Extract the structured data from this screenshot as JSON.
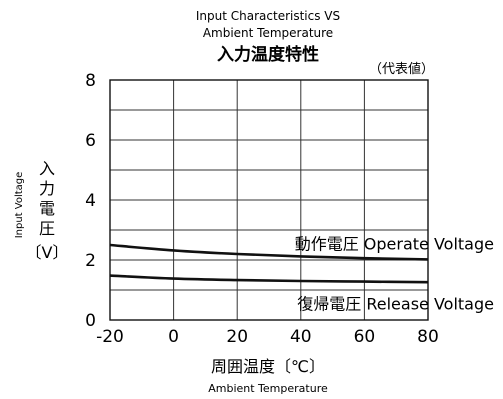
{
  "chart_data": {
    "type": "line",
    "title_en": [
      "Input Characteristics VS",
      "Ambient Temperature"
    ],
    "title_jp": "入力温度特性",
    "note": "（代表値）",
    "xlabel_jp": "周囲温度〔℃〕",
    "xlabel_en": "Ambient Temperature",
    "ylabel_en": "Input Voltage",
    "ylabel_jp_chars": [
      "入",
      "力",
      "電",
      "圧"
    ],
    "ylabel_unit": "〔V〕",
    "xlim": [
      -20,
      80
    ],
    "ylim": [
      0,
      8
    ],
    "x_ticks": [
      "-20",
      "0",
      "20",
      "40",
      "60",
      "80"
    ],
    "y_ticks": [
      "0",
      "2",
      "4",
      "6",
      "8"
    ],
    "grid": true,
    "series": [
      {
        "name": "動作電圧 Operate Voltage",
        "x": [
          -20,
          0,
          20,
          40,
          60,
          80
        ],
        "y": [
          2.5,
          2.32,
          2.2,
          2.12,
          2.06,
          2.02
        ]
      },
      {
        "name": "復帰電圧 Release Voltage",
        "x": [
          -20,
          0,
          20,
          40,
          60,
          80
        ],
        "y": [
          1.48,
          1.38,
          1.33,
          1.3,
          1.28,
          1.26
        ]
      }
    ],
    "colors": {
      "line": "#111111",
      "grid": "#333333"
    }
  }
}
